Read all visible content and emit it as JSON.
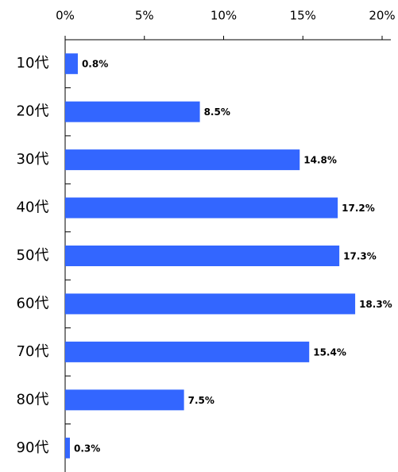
{
  "chart_data": {
    "type": "bar",
    "orientation": "horizontal",
    "categories": [
      "10代",
      "20代",
      "30代",
      "40代",
      "50代",
      "60代",
      "70代",
      "80代",
      "90代"
    ],
    "values": [
      0.8,
      8.5,
      14.8,
      17.2,
      17.3,
      18.3,
      15.4,
      7.5,
      0.3
    ],
    "value_labels": [
      "0.8%",
      "8.5%",
      "14.8%",
      "17.2%",
      "17.3%",
      "18.3%",
      "15.4%",
      "7.5%",
      "0.3%"
    ],
    "color": "#3366ff",
    "xlim": [
      0,
      20
    ],
    "xticks": [
      {
        "value": 0,
        "label": "0%"
      },
      {
        "value": 5,
        "label": "5%"
      },
      {
        "value": 10,
        "label": "10%"
      },
      {
        "value": 15,
        "label": "15%"
      },
      {
        "value": 20,
        "label": "20%"
      }
    ],
    "grid": false
  }
}
